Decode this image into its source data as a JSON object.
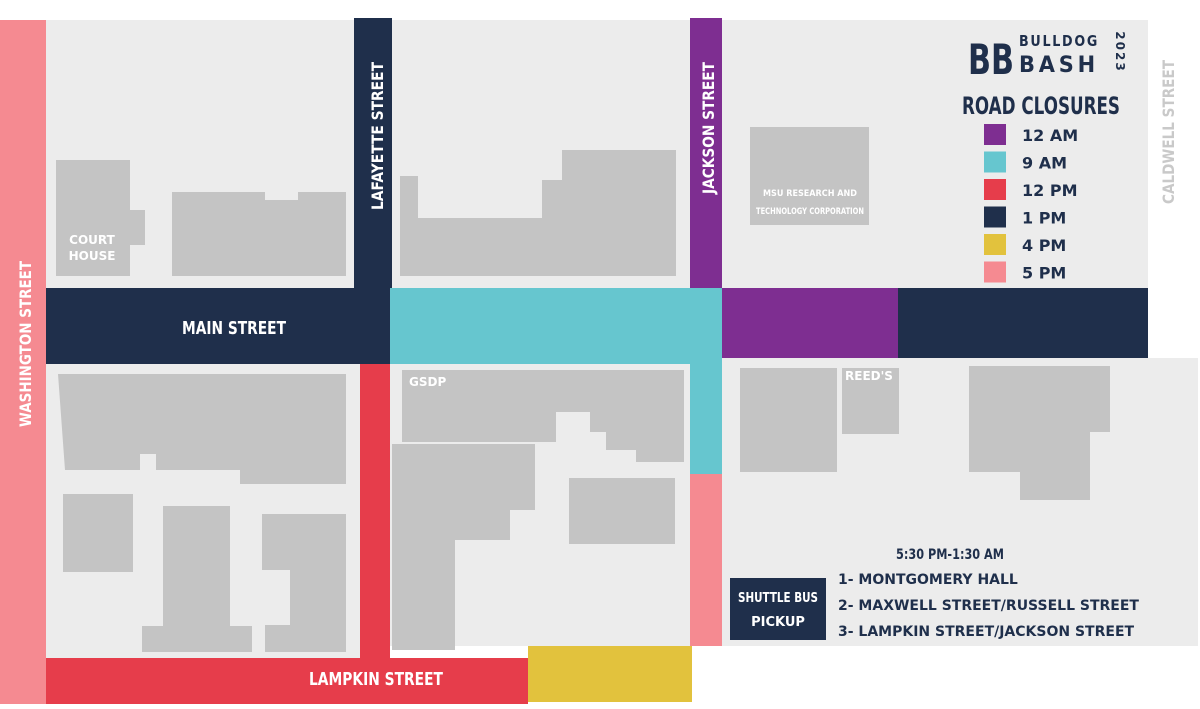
{
  "colors": {
    "block_bg": "#ececec",
    "building": "#c4c4c4",
    "navy": "#1f2f4b",
    "purple": "#7e2e91",
    "teal": "#66c6cf",
    "red": "#e63d4b",
    "yellow": "#e2c23d",
    "pink": "#f58a91",
    "caldwell_text": "#c9c9c9"
  },
  "streets": {
    "washington": "WASHINGTON STREET",
    "lafayette": "LAFAYETTE STREET",
    "jackson": "JACKSON STREET",
    "caldwell": "CALDWELL STREET",
    "main": "MAIN STREET",
    "lampkin": "LAMPKIN STREET"
  },
  "buildings": {
    "court_house_line1": "COURT",
    "court_house_line2": "HOUSE",
    "msu_line1": "MSU  RESEARCH AND",
    "msu_line2": "TECHNOLOGY CORPORATION",
    "gsdp": "GSDP",
    "reeds": "REED'S"
  },
  "logo": {
    "mark": "BB",
    "word1": "BULLDOG",
    "word2": "BASH",
    "year": "2023"
  },
  "legend": {
    "title": "ROAD CLOSURES",
    "items": [
      {
        "label": "12 AM",
        "color": "#7e2e91"
      },
      {
        "label": "9 AM",
        "color": "#66c6cf"
      },
      {
        "label": "12 PM",
        "color": "#e63d4b"
      },
      {
        "label": "1 PM",
        "color": "#1f2f4b"
      },
      {
        "label": "4 PM",
        "color": "#e2c23d"
      },
      {
        "label": "5 PM",
        "color": "#f58a91"
      }
    ]
  },
  "shuttle": {
    "label_line1": "SHUTTLE BUS",
    "label_line2": "PICKUP",
    "hours": "5:30 PM-1:30 AM",
    "stops": [
      "1- MONTGOMERY HALL",
      "2- MAXWELL STREET/RUSSELL STREET",
      "3- LAMPKIN STREET/JACKSON STREET"
    ]
  }
}
